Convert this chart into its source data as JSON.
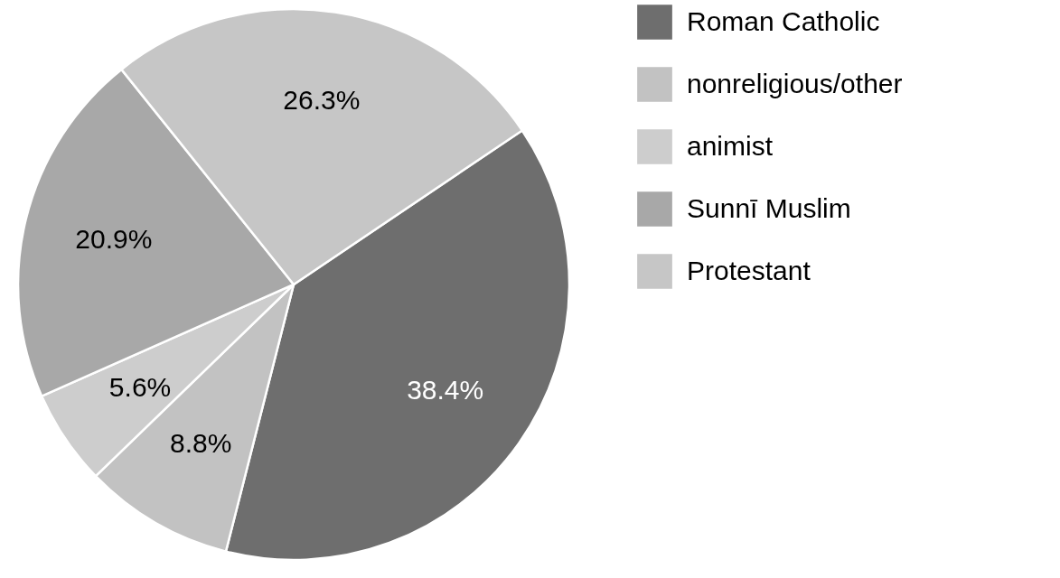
{
  "chart_data": {
    "type": "pie",
    "categories": [
      "Roman Catholic",
      "nonreligious/other",
      "animist",
      "Sunnī Muslim",
      "Protestant"
    ],
    "values": [
      38.4,
      8.8,
      5.6,
      20.9,
      26.3
    ],
    "value_labels": [
      "38.4%",
      "8.8%",
      "5.6%",
      "20.9%",
      "26.3%"
    ],
    "colors": [
      "#6e6e6e",
      "#c2c2c2",
      "#cdcdcd",
      "#a8a8a8",
      "#c6c6c6"
    ],
    "legend": "right"
  }
}
